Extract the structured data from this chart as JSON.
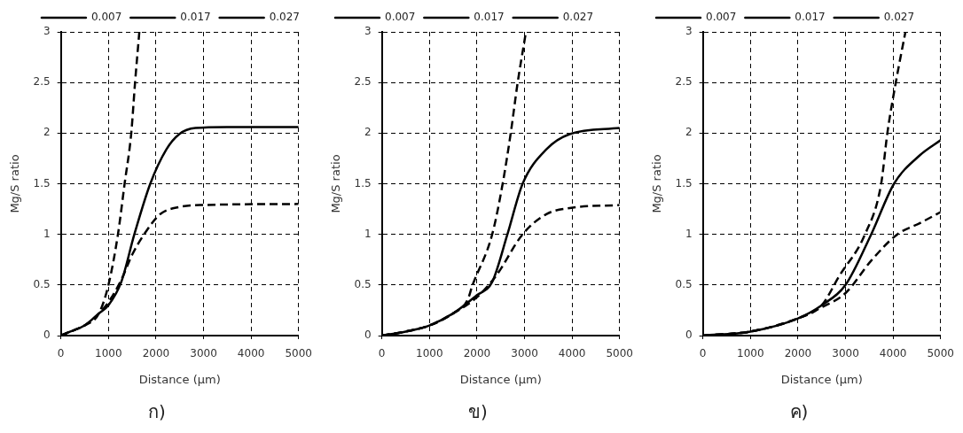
{
  "chart_data": [
    {
      "type": "line",
      "title": "ก)",
      "xlabel": "Distance (µm)",
      "ylabel": "Mg/S ratio",
      "xlim": [
        0,
        5000
      ],
      "xticks": [
        0,
        1000,
        2000,
        3000,
        4000,
        5000
      ],
      "ylim": [
        0,
        3
      ],
      "yticks": [
        0,
        0.5,
        1,
        1.5,
        2,
        2.5,
        3
      ],
      "grid": true,
      "legend": "top right",
      "marker": "none",
      "series": [
        {
          "name": "0.007",
          "color": "#000000",
          "line_style": "dashed",
          "x": [
            0,
            200,
            500,
            800,
            1000,
            1200,
            1340,
            1480,
            1560,
            1650
          ],
          "values": [
            0,
            0.04,
            0.1,
            0.22,
            0.5,
            1.0,
            1.5,
            2.0,
            2.5,
            3.0
          ]
        },
        {
          "name": "0.017",
          "color": "#000000",
          "line_style": "solid",
          "x": [
            0,
            200,
            500,
            800,
            1000,
            1270,
            1545,
            1880,
            2220,
            2490,
            2830,
            3500,
            5000
          ],
          "values": [
            0,
            0.04,
            0.1,
            0.22,
            0.3,
            0.53,
            1.0,
            1.5,
            1.84,
            1.99,
            2.05,
            2.06,
            2.06
          ]
        },
        {
          "name": "0.027",
          "color": "#000000",
          "line_style": "dashed",
          "x": [
            0,
            200,
            500,
            800,
            1000,
            1270,
            1500,
            1750,
            2090,
            2490,
            3000,
            5000
          ],
          "values": [
            0,
            0.04,
            0.1,
            0.22,
            0.33,
            0.55,
            0.8,
            1.0,
            1.2,
            1.27,
            1.29,
            1.3
          ]
        }
      ]
    },
    {
      "type": "line",
      "title": "ข)",
      "xlabel": "Distance (µm)",
      "ylabel": "Mg/S ratio",
      "xlim": [
        0,
        5000
      ],
      "xticks": [
        0,
        1000,
        2000,
        3000,
        4000,
        5000
      ],
      "ylim": [
        0,
        3
      ],
      "yticks": [
        0,
        0.5,
        1,
        1.5,
        2,
        2.5,
        3
      ],
      "grid": true,
      "legend": "top left",
      "marker": "none",
      "series": [
        {
          "name": "0.007",
          "color": "#000000",
          "line_style": "dashed",
          "x": [
            0,
            500,
            1000,
            1500,
            1800,
            1900,
            2320,
            2540,
            2710,
            2850,
            3030
          ],
          "values": [
            0,
            0.04,
            0.1,
            0.22,
            0.35,
            0.49,
            1.0,
            1.5,
            2.0,
            2.48,
            3.0
          ]
        },
        {
          "name": "0.017",
          "color": "#000000",
          "line_style": "solid",
          "x": [
            0,
            500,
            1000,
            1500,
            2000,
            2320,
            2640,
            2960,
            3460,
            3950,
            5000
          ],
          "values": [
            0,
            0.04,
            0.1,
            0.22,
            0.4,
            0.53,
            1.0,
            1.5,
            1.84,
            1.99,
            2.05
          ]
        },
        {
          "name": "0.027",
          "color": "#000000",
          "line_style": "dashed",
          "x": [
            0,
            500,
            1000,
            1500,
            2000,
            2400,
            2960,
            3460,
            3950,
            5000
          ],
          "values": [
            0,
            0.04,
            0.1,
            0.22,
            0.38,
            0.59,
            1.0,
            1.2,
            1.26,
            1.29
          ]
        }
      ]
    },
    {
      "type": "line",
      "title": "ค)",
      "xlabel": "Distance (µm)",
      "ylabel": "Mg/S ratio",
      "xlim": [
        0,
        5000
      ],
      "xticks": [
        0,
        1000,
        2000,
        3000,
        4000,
        5000
      ],
      "ylim": [
        0,
        3
      ],
      "yticks": [
        0,
        0.5,
        1,
        1.5,
        2,
        2.5,
        3
      ],
      "grid": true,
      "legend": "top left",
      "marker": "none",
      "series": [
        {
          "name": "0.007",
          "color": "#000000",
          "line_style": "dashed",
          "x": [
            0,
            1000,
            2000,
            2500,
            2870,
            3410,
            3750,
            3880,
            4050,
            4260
          ],
          "values": [
            0,
            0.04,
            0.17,
            0.3,
            0.59,
            1.0,
            1.5,
            2.0,
            2.48,
            3.0
          ]
        },
        {
          "name": "0.017",
          "color": "#000000",
          "line_style": "solid",
          "x": [
            0,
            1000,
            2000,
            2500,
            3000,
            3540,
            4020,
            4560,
            5000
          ],
          "values": [
            0,
            0.04,
            0.17,
            0.3,
            0.5,
            1.0,
            1.5,
            1.78,
            1.93
          ]
        },
        {
          "name": "0.027",
          "color": "#000000",
          "line_style": "dashed",
          "x": [
            0,
            1000,
            2000,
            2500,
            3000,
            3540,
            4090,
            4560,
            5000
          ],
          "values": [
            0,
            0.04,
            0.17,
            0.28,
            0.42,
            0.74,
            1.0,
            1.11,
            1.22
          ]
        }
      ]
    }
  ]
}
